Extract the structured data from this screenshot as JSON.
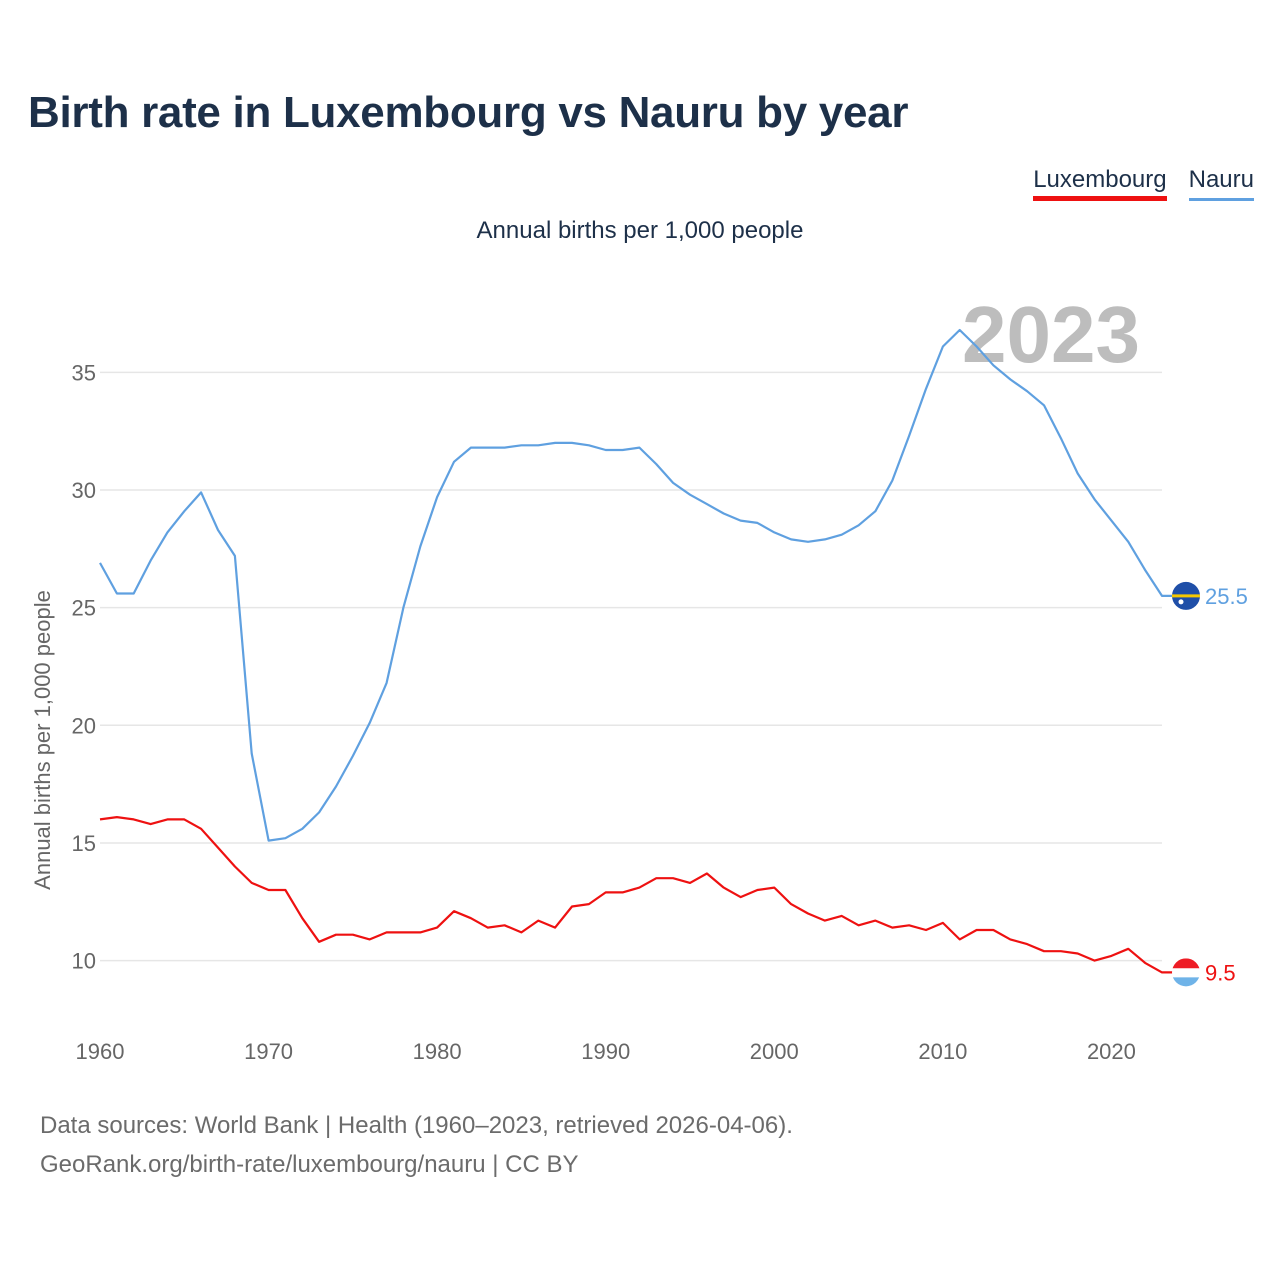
{
  "chart_data": {
    "type": "line",
    "title": "Birth rate in Luxembourg vs Nauru by year",
    "subtitle": "Annual births per 1,000 people",
    "ylabel": "Annual births per 1,000 people",
    "xlabel": "",
    "year_label": "2023",
    "xlim": [
      1960,
      2023
    ],
    "ylim": [
      7.9,
      38.5
    ],
    "x_ticks": [
      1960,
      1970,
      1980,
      1990,
      2000,
      2010,
      2020
    ],
    "y_ticks": [
      10,
      15,
      20,
      25,
      30,
      35
    ],
    "x": [
      1960,
      1961,
      1962,
      1963,
      1964,
      1965,
      1966,
      1967,
      1968,
      1969,
      1970,
      1971,
      1972,
      1973,
      1974,
      1975,
      1976,
      1977,
      1978,
      1979,
      1980,
      1981,
      1982,
      1983,
      1984,
      1985,
      1986,
      1987,
      1988,
      1989,
      1990,
      1991,
      1992,
      1993,
      1994,
      1995,
      1996,
      1997,
      1998,
      1999,
      2000,
      2001,
      2002,
      2003,
      2004,
      2005,
      2006,
      2007,
      2008,
      2009,
      2010,
      2011,
      2012,
      2013,
      2014,
      2015,
      2016,
      2017,
      2018,
      2019,
      2020,
      2021,
      2022,
      2023
    ],
    "series": [
      {
        "name": "Luxembourg",
        "color": "#ee1111",
        "end_label": "9.5",
        "values": [
          16.0,
          16.1,
          16.0,
          15.8,
          16.0,
          16.0,
          15.6,
          14.8,
          14.0,
          13.3,
          13.0,
          13.0,
          11.8,
          10.8,
          11.1,
          11.1,
          10.9,
          11.2,
          11.2,
          11.2,
          11.4,
          12.1,
          11.8,
          11.4,
          11.5,
          11.2,
          11.7,
          11.4,
          12.3,
          12.4,
          12.9,
          12.9,
          13.1,
          13.5,
          13.5,
          13.3,
          13.7,
          13.1,
          12.7,
          13.0,
          13.1,
          12.4,
          12.0,
          11.7,
          11.9,
          11.5,
          11.7,
          11.4,
          11.5,
          11.3,
          11.6,
          10.9,
          11.3,
          11.3,
          10.9,
          10.7,
          10.4,
          10.4,
          10.3,
          10.0,
          10.2,
          10.5,
          9.9,
          9.5
        ]
      },
      {
        "name": "Nauru",
        "color": "#5fa0e0",
        "end_label": "25.5",
        "values": [
          26.9,
          25.6,
          25.6,
          27.0,
          28.2,
          29.1,
          29.9,
          28.3,
          27.2,
          18.8,
          15.1,
          15.2,
          15.6,
          16.3,
          17.4,
          18.7,
          20.1,
          21.8,
          25.0,
          27.6,
          29.7,
          31.2,
          31.8,
          31.8,
          31.8,
          31.9,
          31.9,
          32.0,
          32.0,
          31.9,
          31.7,
          31.7,
          31.8,
          31.1,
          30.3,
          29.8,
          29.4,
          29.0,
          28.7,
          28.6,
          28.2,
          27.9,
          27.8,
          27.9,
          28.1,
          28.5,
          29.1,
          30.4,
          32.3,
          34.3,
          36.1,
          36.8,
          36.1,
          35.3,
          34.7,
          34.2,
          33.6,
          32.2,
          30.7,
          29.6,
          28.7,
          27.8,
          26.6,
          25.5
        ]
      }
    ]
  },
  "legend": {
    "luxembourg": "Luxembourg",
    "nauru": "Nauru"
  },
  "footer": {
    "line1": "Data sources: World Bank | Health (1960–2023, retrieved 2026-04-06).",
    "line2": "GeoRank.org/birth-rate/luxembourg/nauru | CC BY"
  }
}
